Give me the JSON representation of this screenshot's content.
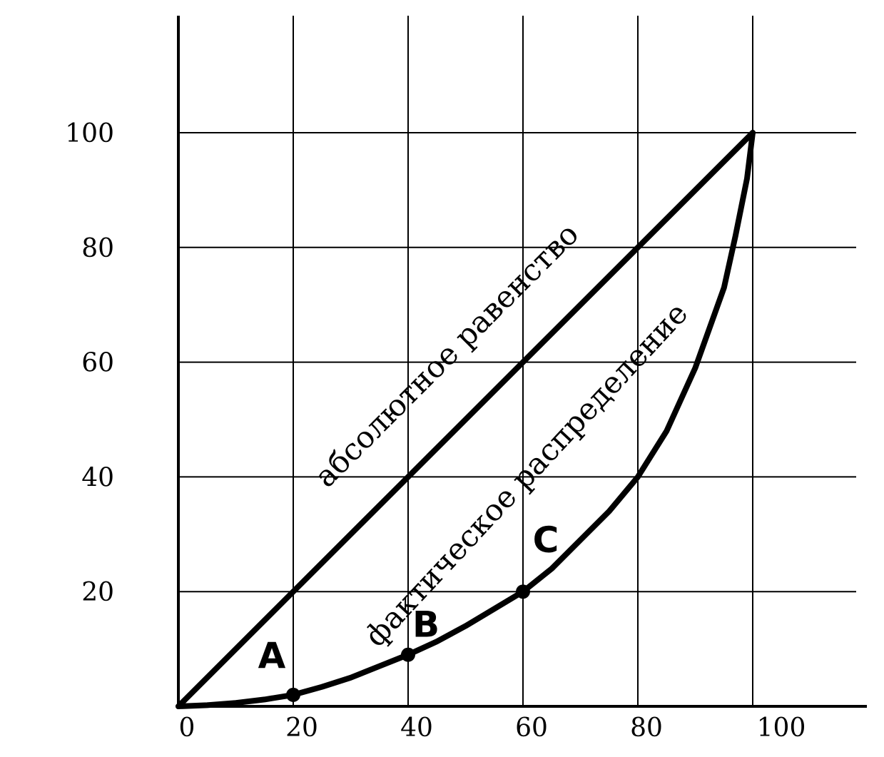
{
  "chart_data": {
    "type": "line",
    "title": "",
    "xlabel": "",
    "ylabel": "",
    "xlim": [
      0,
      115
    ],
    "ylim": [
      0,
      120
    ],
    "x_ticks": [
      0,
      20,
      40,
      60,
      80,
      100
    ],
    "y_ticks": [
      20,
      40,
      60,
      80,
      100
    ],
    "x_tick_labels": [
      "0",
      "20",
      "40",
      "60",
      "80",
      "100"
    ],
    "y_tick_labels": [
      "20",
      "40",
      "60",
      "80",
      "100"
    ],
    "grid": true,
    "series": [
      {
        "name": "абсолютное равенство",
        "x": [
          0,
          20,
          40,
          60,
          80,
          100
        ],
        "y": [
          0,
          20,
          40,
          60,
          80,
          100
        ]
      },
      {
        "name": "фактическое распределение",
        "x": [
          0,
          5,
          10,
          15,
          20,
          25,
          30,
          35,
          40,
          45,
          50,
          55,
          60,
          65,
          70,
          75,
          80,
          85,
          90,
          95,
          97,
          99,
          100
        ],
        "y": [
          0,
          0.2,
          0.6,
          1.2,
          2,
          3.4,
          5,
          7,
          9,
          11.3,
          14,
          17,
          20,
          24,
          29,
          34,
          40,
          48,
          59,
          73,
          82,
          92,
          100
        ]
      }
    ],
    "points": [
      {
        "label": "A",
        "x": 20,
        "y": 2
      },
      {
        "label": "B",
        "x": 40,
        "y": 9
      },
      {
        "label": "C",
        "x": 60,
        "y": 20
      }
    ]
  }
}
